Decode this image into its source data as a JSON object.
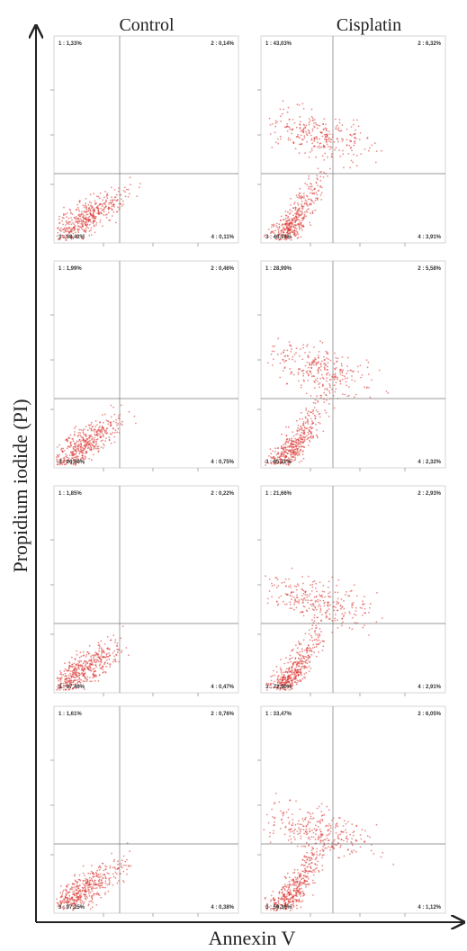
{
  "figure": {
    "columns": [
      "Control",
      "Cisplatin"
    ],
    "y_label": "Propidium iodide (PI)",
    "x_label": "Annexin V",
    "panels": [
      [
        [
          "1 : 1,33%",
          "2 : 0,14%",
          "3 : 98,42%",
          "4 : 0,11%"
        ],
        [
          "1 : 43,03%",
          "2 : 6,32%",
          "3 : 46,74%",
          "4 : 3,91%"
        ]
      ],
      [
        [
          "1 : 1,99%",
          "2 : 0,46%",
          "3 : 96,80%",
          "4 : 0,75%"
        ],
        [
          "1 : 28,99%",
          "2 : 5,58%",
          "3 : 65,11%",
          "4 : 2,32%"
        ]
      ],
      [
        [
          "1 : 1,85%",
          "2 : 0,22%",
          "3 : 97,46%",
          "4 : 0,47%"
        ],
        [
          "1 : 21,66%",
          "2 : 2,93%",
          "3 : 72,50%",
          "4 : 2,91%"
        ]
      ],
      [
        [
          "1 : 1,61%",
          "2 : 0,76%",
          "3 : 97,25%",
          "4 : 0,38%"
        ],
        [
          "1 : 33,47%",
          "2 : 6,05%",
          "3 : 59,36%",
          "4 : 1,12%"
        ]
      ]
    ]
  }
}
